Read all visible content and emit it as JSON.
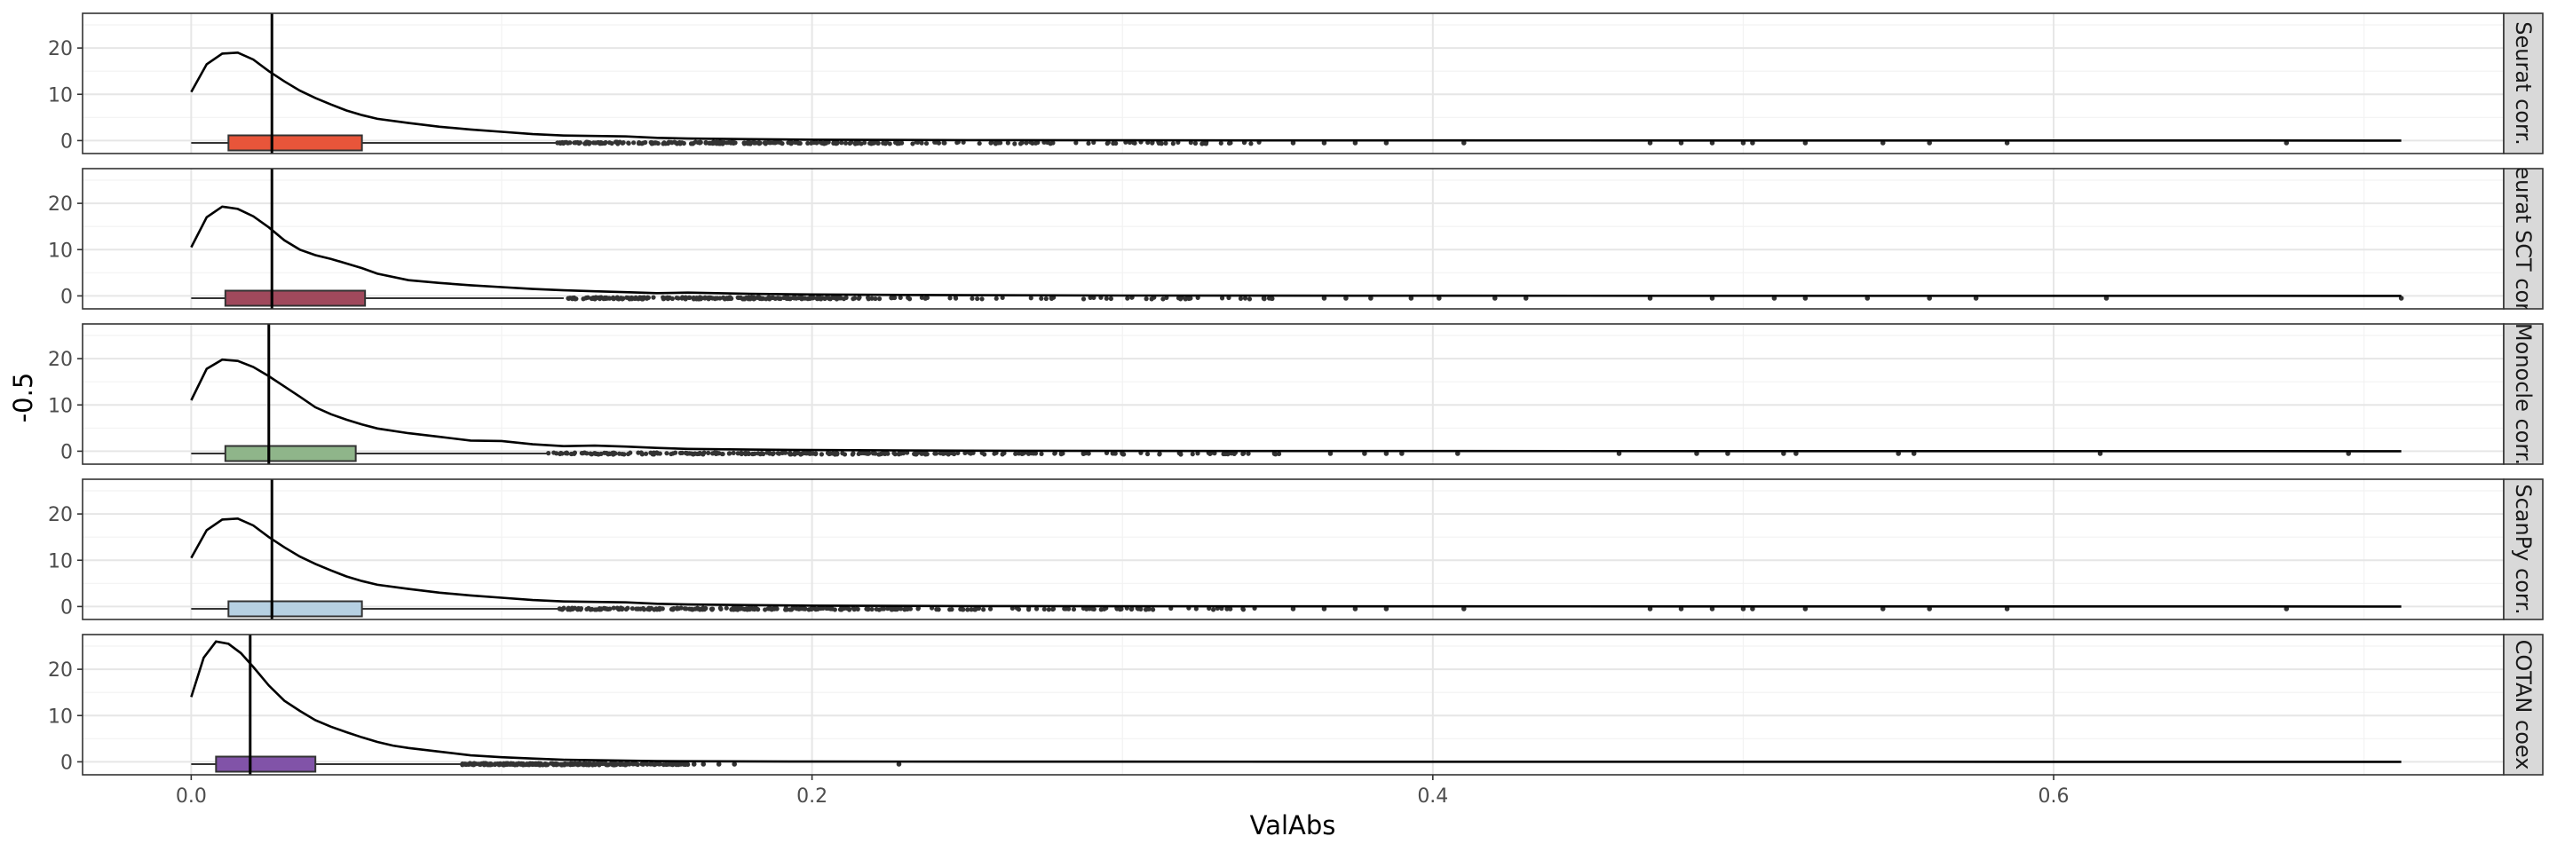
{
  "chart_data": {
    "type": "density-boxplot-facets",
    "xlabel": "ValAbs",
    "ylabel": "-0.5",
    "xlim": [
      -0.035,
      0.745
    ],
    "ylim": [
      -2.8,
      27.5
    ],
    "x_ticks": [
      0.0,
      0.2,
      0.4,
      0.6
    ],
    "x_tick_labels": [
      "0.0",
      "0.2",
      "0.4",
      "0.6"
    ],
    "y_ticks": [
      0,
      10,
      20
    ],
    "y_tick_labels": [
      "0",
      "10",
      "20"
    ],
    "grid": true,
    "facets": [
      {
        "label": "Seurat corr.",
        "color": "#E8553A",
        "vline": 0.026,
        "box": {
          "whisker_low": 0.0,
          "q1": 0.012,
          "median": 0.026,
          "q3": 0.055,
          "whisker_high": 0.12
        },
        "density": {
          "x": [
            0.0,
            0.005,
            0.01,
            0.015,
            0.02,
            0.025,
            0.03,
            0.035,
            0.04,
            0.045,
            0.05,
            0.055,
            0.06,
            0.07,
            0.08,
            0.09,
            0.1,
            0.11,
            0.12,
            0.13,
            0.14,
            0.15,
            0.16,
            0.18,
            0.2,
            0.25,
            0.3,
            0.4,
            0.5,
            0.6,
            0.712
          ],
          "y": [
            10.5,
            16.5,
            18.8,
            19.0,
            17.5,
            15.0,
            12.8,
            10.8,
            9.2,
            7.8,
            6.5,
            5.5,
            4.7,
            3.8,
            3.0,
            2.4,
            1.9,
            1.4,
            1.1,
            1.0,
            0.9,
            0.6,
            0.45,
            0.3,
            0.2,
            0.1,
            0.05,
            0.03,
            0.02,
            0.01,
            0.0
          ]
        },
        "outliers": {
          "dense_from": 0.118,
          "dense_to": 0.232,
          "sparse_to": 0.345,
          "far": [
            0.355,
            0.365,
            0.375,
            0.385,
            0.41,
            0.47,
            0.48,
            0.49,
            0.5,
            0.503,
            0.52,
            0.545,
            0.56,
            0.585,
            0.675
          ]
        }
      },
      {
        "label": "Seurat SCT corr.",
        "color": "#A0495C",
        "vline": 0.026,
        "box": {
          "whisker_low": 0.0,
          "q1": 0.011,
          "median": 0.026,
          "q3": 0.056,
          "whisker_high": 0.12
        },
        "density": {
          "x": [
            0.0,
            0.005,
            0.01,
            0.015,
            0.02,
            0.025,
            0.03,
            0.035,
            0.04,
            0.045,
            0.05,
            0.055,
            0.06,
            0.07,
            0.08,
            0.09,
            0.1,
            0.11,
            0.12,
            0.13,
            0.14,
            0.15,
            0.16,
            0.18,
            0.2,
            0.25,
            0.3,
            0.4,
            0.5,
            0.6,
            0.712
          ],
          "y": [
            10.5,
            17.0,
            19.3,
            18.8,
            17.2,
            14.8,
            12.0,
            10.0,
            8.8,
            8.0,
            7.0,
            6.0,
            4.8,
            3.4,
            2.8,
            2.3,
            1.9,
            1.5,
            1.2,
            1.0,
            0.8,
            0.6,
            0.7,
            0.45,
            0.3,
            0.15,
            0.08,
            0.04,
            0.02,
            0.01,
            0.0
          ]
        },
        "outliers": {
          "dense_from": 0.121,
          "dense_to": 0.21,
          "sparse_to": 0.35,
          "far": [
            0.365,
            0.372,
            0.38,
            0.393,
            0.402,
            0.42,
            0.43,
            0.47,
            0.49,
            0.51,
            0.52,
            0.54,
            0.56,
            0.575,
            0.617,
            0.712
          ]
        }
      },
      {
        "label": "Monocle corr.",
        "color": "#8FB58A",
        "vline": 0.025,
        "box": {
          "whisker_low": 0.0,
          "q1": 0.011,
          "median": 0.025,
          "q3": 0.053,
          "whisker_high": 0.115
        },
        "density": {
          "x": [
            0.0,
            0.005,
            0.01,
            0.015,
            0.02,
            0.025,
            0.03,
            0.035,
            0.04,
            0.045,
            0.05,
            0.055,
            0.06,
            0.07,
            0.08,
            0.09,
            0.1,
            0.11,
            0.12,
            0.13,
            0.14,
            0.15,
            0.16,
            0.18,
            0.2,
            0.25,
            0.3,
            0.4,
            0.5,
            0.6,
            0.712
          ],
          "y": [
            11.0,
            17.8,
            19.8,
            19.5,
            18.2,
            16.2,
            14.0,
            11.8,
            9.5,
            8.0,
            6.8,
            5.8,
            4.9,
            3.9,
            3.1,
            2.3,
            2.2,
            1.5,
            1.1,
            1.2,
            1.0,
            0.7,
            0.5,
            0.35,
            0.25,
            0.12,
            0.06,
            0.03,
            0.02,
            0.01,
            0.0
          ]
        },
        "outliers": {
          "dense_from": 0.115,
          "dense_to": 0.245,
          "sparse_to": 0.355,
          "far": [
            0.367,
            0.378,
            0.385,
            0.39,
            0.408,
            0.46,
            0.485,
            0.495,
            0.513,
            0.517,
            0.55,
            0.555,
            0.615,
            0.695
          ]
        }
      },
      {
        "label": "ScanPy corr.",
        "color": "#B6D0E2",
        "vline": 0.026,
        "box": {
          "whisker_low": 0.0,
          "q1": 0.012,
          "median": 0.026,
          "q3": 0.055,
          "whisker_high": 0.12
        },
        "density": {
          "x": [
            0.0,
            0.005,
            0.01,
            0.015,
            0.02,
            0.025,
            0.03,
            0.035,
            0.04,
            0.045,
            0.05,
            0.055,
            0.06,
            0.07,
            0.08,
            0.09,
            0.1,
            0.11,
            0.12,
            0.13,
            0.14,
            0.15,
            0.16,
            0.18,
            0.2,
            0.25,
            0.3,
            0.4,
            0.5,
            0.6,
            0.712
          ],
          "y": [
            10.5,
            16.5,
            18.8,
            19.0,
            17.5,
            15.0,
            12.8,
            10.8,
            9.2,
            7.8,
            6.5,
            5.5,
            4.7,
            3.8,
            3.0,
            2.4,
            1.9,
            1.4,
            1.1,
            1.0,
            0.9,
            0.6,
            0.45,
            0.3,
            0.2,
            0.1,
            0.05,
            0.03,
            0.02,
            0.01,
            0.0
          ]
        },
        "outliers": {
          "dense_from": 0.118,
          "dense_to": 0.232,
          "sparse_to": 0.345,
          "far": [
            0.355,
            0.365,
            0.375,
            0.385,
            0.41,
            0.47,
            0.48,
            0.49,
            0.5,
            0.503,
            0.52,
            0.545,
            0.56,
            0.585,
            0.675
          ]
        }
      },
      {
        "label": "COTAN coex",
        "color": "#8153A8",
        "vline": 0.019,
        "box": {
          "whisker_low": 0.0,
          "q1": 0.008,
          "median": 0.019,
          "q3": 0.04,
          "whisker_high": 0.087
        },
        "density": {
          "x": [
            0.0,
            0.004,
            0.008,
            0.012,
            0.016,
            0.02,
            0.025,
            0.03,
            0.035,
            0.04,
            0.045,
            0.05,
            0.055,
            0.06,
            0.065,
            0.07,
            0.08,
            0.09,
            0.1,
            0.11,
            0.12,
            0.13,
            0.15,
            0.2,
            0.3,
            0.4,
            0.5,
            0.6,
            0.712
          ],
          "y": [
            14.0,
            22.5,
            26.0,
            25.5,
            23.5,
            20.5,
            16.5,
            13.2,
            11.0,
            9.0,
            7.6,
            6.4,
            5.3,
            4.3,
            3.5,
            3.0,
            2.2,
            1.4,
            1.0,
            0.7,
            0.45,
            0.35,
            0.15,
            0.05,
            0.03,
            0.02,
            0.01,
            0.005,
            0.0
          ]
        },
        "outliers": {
          "dense_from": 0.087,
          "dense_to": 0.135,
          "sparse_to": 0.16,
          "far": [
            0.162,
            0.165,
            0.17,
            0.175,
            0.228
          ]
        }
      }
    ]
  }
}
